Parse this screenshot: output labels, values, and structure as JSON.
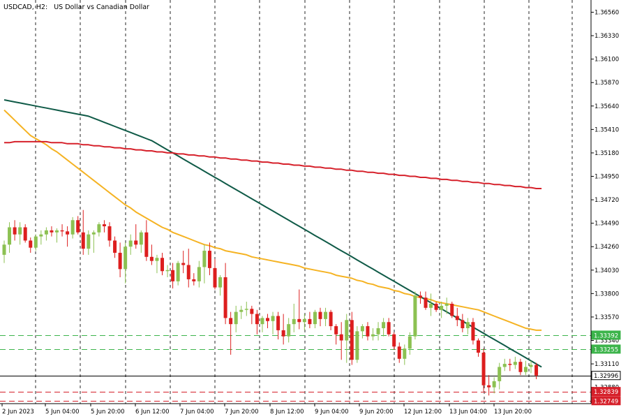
{
  "header": {
    "symbol_timeframe": "USDCAD, H2:",
    "description": "US Dollar vs Canadian Dollar"
  },
  "colors": {
    "background": "#ffffff",
    "grid": "#000000",
    "bull": "#8cc152",
    "bear": "#dd1e1e",
    "ma_fast": "#f5b323",
    "ma_mid": "#0f5a47",
    "ma_slow": "#d6202a",
    "support_green": "#3cb44b",
    "resistance_red": "#d6202a",
    "current_price": "#000000"
  },
  "price_axis": {
    "ticks": [
      "1.36560",
      "1.36330",
      "1.36100",
      "1.35870",
      "1.35640",
      "1.35410",
      "1.35180",
      "1.34950",
      "1.34720",
      "1.34490",
      "1.34260",
      "1.34030",
      "1.33800",
      "1.33570",
      "1.33340",
      "1.33110",
      "1.32880"
    ]
  },
  "time_axis": {
    "labels": [
      "2 Jun 2023",
      "5 Jun 04:00",
      "5 Jun 20:00",
      "6 Jun 12:00",
      "7 Jun 04:00",
      "7 Jun 20:00",
      "8 Jun 12:00",
      "9 Jun 04:00",
      "9 Jun 20:00",
      "12 Jun 12:00",
      "13 Jun 04:00",
      "13 Jun 20:00"
    ]
  },
  "price_tags": [
    {
      "value": "1.33392",
      "kind": "green"
    },
    {
      "value": "1.33255",
      "kind": "green"
    },
    {
      "value": "1.32996",
      "kind": "current"
    },
    {
      "value": "1.32839",
      "kind": "red"
    },
    {
      "value": "1.32749",
      "kind": "red"
    }
  ],
  "chart_data": {
    "type": "candlestick",
    "title": "USDCAD, H2:  US Dollar vs Canadian Dollar",
    "ylim": [
      1.3272,
      1.3668
    ],
    "grid": "vertical dashed",
    "candles": [
      {
        "o": 1.3418,
        "h": 1.3432,
        "l": 1.341,
        "c": 1.3428
      },
      {
        "o": 1.3428,
        "h": 1.345,
        "l": 1.342,
        "c": 1.3445
      },
      {
        "o": 1.3445,
        "h": 1.3452,
        "l": 1.3432,
        "c": 1.3438
      },
      {
        "o": 1.3438,
        "h": 1.345,
        "l": 1.3428,
        "c": 1.3445
      },
      {
        "o": 1.3445,
        "h": 1.3448,
        "l": 1.343,
        "c": 1.3432
      },
      {
        "o": 1.3432,
        "h": 1.3435,
        "l": 1.342,
        "c": 1.3425
      },
      {
        "o": 1.3425,
        "h": 1.3438,
        "l": 1.3422,
        "c": 1.3436
      },
      {
        "o": 1.3436,
        "h": 1.3442,
        "l": 1.3428,
        "c": 1.3438
      },
      {
        "o": 1.3438,
        "h": 1.3445,
        "l": 1.3432,
        "c": 1.3442
      },
      {
        "o": 1.3442,
        "h": 1.3446,
        "l": 1.3436,
        "c": 1.344
      },
      {
        "o": 1.344,
        "h": 1.3444,
        "l": 1.343,
        "c": 1.3442
      },
      {
        "o": 1.3442,
        "h": 1.3448,
        "l": 1.3436,
        "c": 1.3441
      },
      {
        "o": 1.3441,
        "h": 1.3446,
        "l": 1.3426,
        "c": 1.3438
      },
      {
        "o": 1.3438,
        "h": 1.3455,
        "l": 1.3434,
        "c": 1.3452
      },
      {
        "o": 1.3452,
        "h": 1.3456,
        "l": 1.3438,
        "c": 1.344
      },
      {
        "o": 1.344,
        "h": 1.3462,
        "l": 1.3418,
        "c": 1.3424
      },
      {
        "o": 1.3424,
        "h": 1.3442,
        "l": 1.3418,
        "c": 1.3438
      },
      {
        "o": 1.3438,
        "h": 1.3442,
        "l": 1.342,
        "c": 1.344
      },
      {
        "o": 1.344,
        "h": 1.345,
        "l": 1.3436,
        "c": 1.3448
      },
      {
        "o": 1.3448,
        "h": 1.3452,
        "l": 1.344,
        "c": 1.3446
      },
      {
        "o": 1.3446,
        "h": 1.345,
        "l": 1.3426,
        "c": 1.3432
      },
      {
        "o": 1.3432,
        "h": 1.3436,
        "l": 1.3415,
        "c": 1.342
      },
      {
        "o": 1.342,
        "h": 1.343,
        "l": 1.3396,
        "c": 1.3404
      },
      {
        "o": 1.3404,
        "h": 1.343,
        "l": 1.339,
        "c": 1.3426
      },
      {
        "o": 1.3426,
        "h": 1.3438,
        "l": 1.3418,
        "c": 1.3432
      },
      {
        "o": 1.3432,
        "h": 1.3448,
        "l": 1.3424,
        "c": 1.3428
      },
      {
        "o": 1.3428,
        "h": 1.3442,
        "l": 1.342,
        "c": 1.344
      },
      {
        "o": 1.344,
        "h": 1.3452,
        "l": 1.3412,
        "c": 1.3416
      },
      {
        "o": 1.3416,
        "h": 1.3428,
        "l": 1.3408,
        "c": 1.3412
      },
      {
        "o": 1.3412,
        "h": 1.3418,
        "l": 1.34,
        "c": 1.3415
      },
      {
        "o": 1.3415,
        "h": 1.342,
        "l": 1.3398,
        "c": 1.3402
      },
      {
        "o": 1.3402,
        "h": 1.3408,
        "l": 1.3396,
        "c": 1.3403
      },
      {
        "o": 1.3403,
        "h": 1.341,
        "l": 1.3385,
        "c": 1.3392
      },
      {
        "o": 1.3392,
        "h": 1.3412,
        "l": 1.3388,
        "c": 1.341
      },
      {
        "o": 1.341,
        "h": 1.3422,
        "l": 1.34,
        "c": 1.3408
      },
      {
        "o": 1.3408,
        "h": 1.3424,
        "l": 1.3386,
        "c": 1.3394
      },
      {
        "o": 1.3394,
        "h": 1.34,
        "l": 1.3388,
        "c": 1.3392
      },
      {
        "o": 1.3392,
        "h": 1.3412,
        "l": 1.3386,
        "c": 1.3406
      },
      {
        "o": 1.3406,
        "h": 1.3428,
        "l": 1.339,
        "c": 1.3422
      },
      {
        "o": 1.3422,
        "h": 1.343,
        "l": 1.3398,
        "c": 1.3405
      },
      {
        "o": 1.3405,
        "h": 1.3414,
        "l": 1.3384,
        "c": 1.3386
      },
      {
        "o": 1.3386,
        "h": 1.3398,
        "l": 1.3378,
        "c": 1.3396
      },
      {
        "o": 1.3396,
        "h": 1.341,
        "l": 1.335,
        "c": 1.3356
      },
      {
        "o": 1.3356,
        "h": 1.3362,
        "l": 1.332,
        "c": 1.335
      },
      {
        "o": 1.335,
        "h": 1.3368,
        "l": 1.3342,
        "c": 1.3362
      },
      {
        "o": 1.3362,
        "h": 1.3368,
        "l": 1.3355,
        "c": 1.3364
      },
      {
        "o": 1.3364,
        "h": 1.3372,
        "l": 1.3358,
        "c": 1.3365
      },
      {
        "o": 1.3365,
        "h": 1.3368,
        "l": 1.335,
        "c": 1.336
      },
      {
        "o": 1.336,
        "h": 1.3364,
        "l": 1.334,
        "c": 1.335
      },
      {
        "o": 1.335,
        "h": 1.3358,
        "l": 1.3342,
        "c": 1.3356
      },
      {
        "o": 1.3356,
        "h": 1.336,
        "l": 1.3346,
        "c": 1.3353
      },
      {
        "o": 1.3353,
        "h": 1.3362,
        "l": 1.334,
        "c": 1.3358
      },
      {
        "o": 1.3358,
        "h": 1.3362,
        "l": 1.3335,
        "c": 1.3344
      },
      {
        "o": 1.3344,
        "h": 1.336,
        "l": 1.333,
        "c": 1.3338
      },
      {
        "o": 1.3338,
        "h": 1.3356,
        "l": 1.3332,
        "c": 1.335
      },
      {
        "o": 1.335,
        "h": 1.337,
        "l": 1.3342,
        "c": 1.3355
      },
      {
        "o": 1.3355,
        "h": 1.3384,
        "l": 1.3345,
        "c": 1.3352
      },
      {
        "o": 1.3352,
        "h": 1.336,
        "l": 1.3344,
        "c": 1.3355
      },
      {
        "o": 1.3355,
        "h": 1.3362,
        "l": 1.3346,
        "c": 1.335
      },
      {
        "o": 1.335,
        "h": 1.3364,
        "l": 1.3346,
        "c": 1.3362
      },
      {
        "o": 1.3362,
        "h": 1.3366,
        "l": 1.3348,
        "c": 1.3355
      },
      {
        "o": 1.3355,
        "h": 1.3366,
        "l": 1.3348,
        "c": 1.3362
      },
      {
        "o": 1.3362,
        "h": 1.3364,
        "l": 1.3344,
        "c": 1.3348
      },
      {
        "o": 1.3348,
        "h": 1.335,
        "l": 1.333,
        "c": 1.334
      },
      {
        "o": 1.334,
        "h": 1.3352,
        "l": 1.3315,
        "c": 1.3334
      },
      {
        "o": 1.3334,
        "h": 1.336,
        "l": 1.3312,
        "c": 1.3354
      },
      {
        "o": 1.3354,
        "h": 1.3362,
        "l": 1.331,
        "c": 1.3315
      },
      {
        "o": 1.3315,
        "h": 1.3348,
        "l": 1.3312,
        "c": 1.3343
      },
      {
        "o": 1.3343,
        "h": 1.335,
        "l": 1.3336,
        "c": 1.3348
      },
      {
        "o": 1.3348,
        "h": 1.3352,
        "l": 1.3334,
        "c": 1.3338
      },
      {
        "o": 1.3338,
        "h": 1.3346,
        "l": 1.3334,
        "c": 1.334
      },
      {
        "o": 1.334,
        "h": 1.3352,
        "l": 1.3334,
        "c": 1.3346
      },
      {
        "o": 1.3346,
        "h": 1.3356,
        "l": 1.3338,
        "c": 1.3352
      },
      {
        "o": 1.3352,
        "h": 1.3356,
        "l": 1.3338,
        "c": 1.334
      },
      {
        "o": 1.334,
        "h": 1.3342,
        "l": 1.3325,
        "c": 1.3328
      },
      {
        "o": 1.3328,
        "h": 1.3332,
        "l": 1.3312,
        "c": 1.3316
      },
      {
        "o": 1.3316,
        "h": 1.333,
        "l": 1.331,
        "c": 1.3326
      },
      {
        "o": 1.3326,
        "h": 1.3342,
        "l": 1.332,
        "c": 1.3338
      },
      {
        "o": 1.3338,
        "h": 1.3382,
        "l": 1.3335,
        "c": 1.3378
      },
      {
        "o": 1.3378,
        "h": 1.3382,
        "l": 1.337,
        "c": 1.3376
      },
      {
        "o": 1.3376,
        "h": 1.3382,
        "l": 1.3364,
        "c": 1.3366
      },
      {
        "o": 1.3366,
        "h": 1.338,
        "l": 1.3358,
        "c": 1.337
      },
      {
        "o": 1.337,
        "h": 1.3372,
        "l": 1.3362,
        "c": 1.3364
      },
      {
        "o": 1.3364,
        "h": 1.3372,
        "l": 1.3356,
        "c": 1.3368
      },
      {
        "o": 1.3368,
        "h": 1.3376,
        "l": 1.336,
        "c": 1.337
      },
      {
        "o": 1.337,
        "h": 1.3372,
        "l": 1.3356,
        "c": 1.3358
      },
      {
        "o": 1.3358,
        "h": 1.3366,
        "l": 1.3348,
        "c": 1.3354
      },
      {
        "o": 1.3354,
        "h": 1.336,
        "l": 1.3342,
        "c": 1.3346
      },
      {
        "o": 1.3346,
        "h": 1.3356,
        "l": 1.334,
        "c": 1.3352
      },
      {
        "o": 1.3352,
        "h": 1.3356,
        "l": 1.333,
        "c": 1.3334
      },
      {
        "o": 1.3334,
        "h": 1.3336,
        "l": 1.3318,
        "c": 1.3322
      },
      {
        "o": 1.3322,
        "h": 1.3326,
        "l": 1.3284,
        "c": 1.329
      },
      {
        "o": 1.329,
        "h": 1.33,
        "l": 1.328,
        "c": 1.3288
      },
      {
        "o": 1.3288,
        "h": 1.3298,
        "l": 1.3282,
        "c": 1.3294
      },
      {
        "o": 1.3294,
        "h": 1.3312,
        "l": 1.3286,
        "c": 1.3308
      },
      {
        "o": 1.3308,
        "h": 1.3316,
        "l": 1.3304,
        "c": 1.3311
      },
      {
        "o": 1.3311,
        "h": 1.3316,
        "l": 1.3304,
        "c": 1.331
      },
      {
        "o": 1.331,
        "h": 1.3318,
        "l": 1.3306,
        "c": 1.3313
      },
      {
        "o": 1.3313,
        "h": 1.3316,
        "l": 1.33,
        "c": 1.3303
      },
      {
        "o": 1.3303,
        "h": 1.3314,
        "l": 1.33,
        "c": 1.3308
      },
      {
        "o": 1.3308,
        "h": 1.3314,
        "l": 1.3302,
        "c": 1.331
      },
      {
        "o": 1.331,
        "h": 1.3312,
        "l": 1.3296,
        "c": 1.32996
      }
    ],
    "ma_series": [
      {
        "key": "ma_fast",
        "values": [
          1.356,
          1.3555,
          1.355,
          1.3545,
          1.354,
          1.3535,
          1.3532,
          1.3529,
          1.3526,
          1.3522,
          1.3519,
          1.3515,
          1.3511,
          1.3507,
          1.3503,
          1.3499,
          1.3495,
          1.3491,
          1.3487,
          1.3483,
          1.3479,
          1.3475,
          1.3471,
          1.3467,
          1.3464,
          1.346,
          1.3457,
          1.3454,
          1.3451,
          1.3448,
          1.3445,
          1.3443,
          1.344,
          1.3438,
          1.3436,
          1.3434,
          1.3432,
          1.343,
          1.3428,
          1.3427,
          1.3425,
          1.3424,
          1.3422,
          1.3421,
          1.342,
          1.3419,
          1.3418,
          1.3416,
          1.3415,
          1.3414,
          1.3413,
          1.3412,
          1.3411,
          1.341,
          1.3409,
          1.3408,
          1.3407,
          1.3405,
          1.3404,
          1.3403,
          1.3402,
          1.3401,
          1.34,
          1.3398,
          1.3397,
          1.3396,
          1.3395,
          1.3393,
          1.3392,
          1.339,
          1.3389,
          1.3387,
          1.3386,
          1.3385,
          1.3383,
          1.3382,
          1.338,
          1.3379,
          1.3377,
          1.3376,
          1.3375,
          1.3374,
          1.3372,
          1.3371,
          1.337,
          1.3369,
          1.3368,
          1.3367,
          1.3366,
          1.3365,
          1.3364,
          1.3362,
          1.336,
          1.3358,
          1.3356,
          1.3354,
          1.3352,
          1.335,
          1.3348,
          1.3346,
          1.3345,
          1.3344,
          1.3344
        ]
      },
      {
        "key": "ma_mid",
        "values": [
          1.357,
          1.3569,
          1.3568,
          1.3567,
          1.3566,
          1.3565,
          1.3564,
          1.3563,
          1.3562,
          1.3561,
          1.356,
          1.3559,
          1.3558,
          1.3557,
          1.3556,
          1.3555,
          1.3554,
          1.3552,
          1.355,
          1.3548,
          1.3546,
          1.3544,
          1.3542,
          1.354,
          1.3538,
          1.3536,
          1.3534,
          1.3532,
          1.353,
          1.3527,
          1.3524,
          1.3521,
          1.3518,
          1.3515,
          1.3512,
          1.3509,
          1.3506,
          1.3503,
          1.35,
          1.3497,
          1.3494,
          1.3491,
          1.3488,
          1.3485,
          1.3482,
          1.3479,
          1.3476,
          1.3473,
          1.347,
          1.3467,
          1.3464,
          1.3461,
          1.3458,
          1.3455,
          1.3452,
          1.3449,
          1.3446,
          1.3443,
          1.344,
          1.3437,
          1.3434,
          1.3431,
          1.3428,
          1.3425,
          1.3422,
          1.3419,
          1.3416,
          1.3413,
          1.341,
          1.3407,
          1.3404,
          1.3401,
          1.3398,
          1.3395,
          1.3392,
          1.3389,
          1.3386,
          1.3383,
          1.338,
          1.3377,
          1.3374,
          1.3371,
          1.3368,
          1.3365,
          1.3362,
          1.3359,
          1.3356,
          1.3353,
          1.335,
          1.3347,
          1.3344,
          1.3341,
          1.3338,
          1.3335,
          1.3332,
          1.3329,
          1.3326,
          1.3323,
          1.332,
          1.3317,
          1.3314,
          1.3311,
          1.3308
        ]
      },
      {
        "key": "ma_slow",
        "values": [
          1.3528,
          1.3528,
          1.3529,
          1.3529,
          1.3529,
          1.3529,
          1.3529,
          1.3529,
          1.3529,
          1.3528,
          1.3528,
          1.3528,
          1.3527,
          1.3527,
          1.3527,
          1.3526,
          1.3526,
          1.3525,
          1.3525,
          1.3524,
          1.3524,
          1.3523,
          1.3523,
          1.3522,
          1.3522,
          1.3521,
          1.3521,
          1.352,
          1.352,
          1.3519,
          1.3519,
          1.3518,
          1.3518,
          1.3517,
          1.3517,
          1.3516,
          1.3516,
          1.3515,
          1.3515,
          1.3514,
          1.3514,
          1.3513,
          1.3513,
          1.3512,
          1.3512,
          1.3511,
          1.3511,
          1.351,
          1.351,
          1.3509,
          1.3509,
          1.3508,
          1.3508,
          1.3507,
          1.3507,
          1.3506,
          1.3506,
          1.3505,
          1.3505,
          1.3504,
          1.3504,
          1.3503,
          1.3503,
          1.3502,
          1.3502,
          1.3501,
          1.3501,
          1.35,
          1.35,
          1.3499,
          1.3499,
          1.3498,
          1.3498,
          1.3497,
          1.3497,
          1.3496,
          1.3496,
          1.3495,
          1.3495,
          1.3494,
          1.3494,
          1.3493,
          1.3493,
          1.3492,
          1.3492,
          1.3491,
          1.3491,
          1.349,
          1.349,
          1.3489,
          1.3489,
          1.3488,
          1.3488,
          1.3487,
          1.3487,
          1.3486,
          1.3486,
          1.3485,
          1.3485,
          1.3484,
          1.3484,
          1.3483,
          1.3483
        ]
      }
    ],
    "hlines": [
      {
        "value": 1.33392,
        "kind": "green"
      },
      {
        "value": 1.33255,
        "kind": "green"
      },
      {
        "value": 1.32996,
        "kind": "current"
      },
      {
        "value": 1.32839,
        "kind": "red"
      },
      {
        "value": 1.32749,
        "kind": "red"
      }
    ]
  }
}
